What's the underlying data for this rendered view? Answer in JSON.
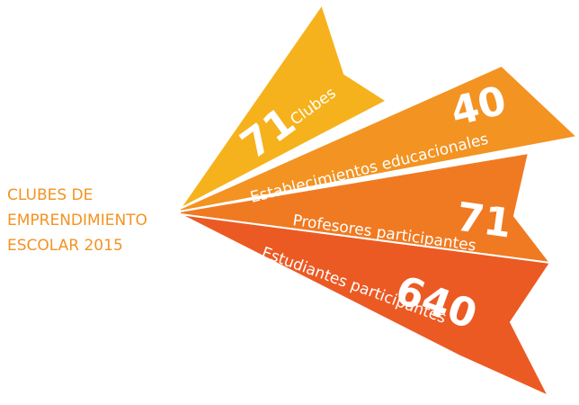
{
  "title": {
    "lines": [
      "CLUBES DE",
      "EMPRENDIMIENTO",
      "ESCOLAR 2015"
    ]
  },
  "items": [
    {
      "number": "71",
      "label": "Clubes"
    },
    {
      "number": "40",
      "label": "Establecimientos educacionales"
    },
    {
      "number": "71",
      "label": "Profesores participantes"
    },
    {
      "number": "640",
      "label": "Estudiantes participantes"
    }
  ]
}
